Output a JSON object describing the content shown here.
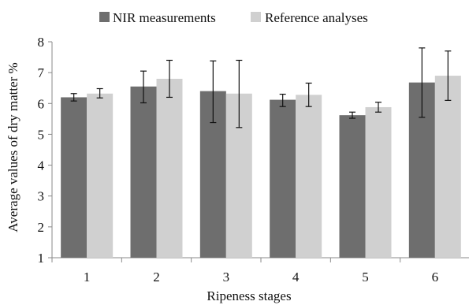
{
  "chart_data": {
    "type": "bar",
    "title": "",
    "xlabel": "Ripeness stages",
    "ylabel": "Average values of dry matter %",
    "categories": [
      "1",
      "2",
      "3",
      "4",
      "5",
      "6"
    ],
    "ylim": [
      1,
      8
    ],
    "yticks": [
      "1",
      "2",
      "3",
      "4",
      "5",
      "6",
      "7",
      "8"
    ],
    "grid": false,
    "legend_position": "top",
    "series": [
      {
        "name": "NIR measurements",
        "color": "#6e6e6e",
        "values": [
          6.2,
          6.55,
          6.4,
          6.12,
          5.62,
          6.68
        ],
        "error_low": [
          6.08,
          6.02,
          5.38,
          5.9,
          5.52,
          5.55
        ],
        "error_high": [
          6.32,
          7.05,
          7.38,
          6.3,
          5.72,
          7.8
        ]
      },
      {
        "name": "Reference analyses",
        "color": "#d0d0d0",
        "values": [
          6.32,
          6.8,
          6.32,
          6.28,
          5.88,
          6.9
        ],
        "error_low": [
          6.18,
          6.2,
          5.22,
          5.9,
          5.72,
          6.1
        ],
        "error_high": [
          6.48,
          7.4,
          7.4,
          6.66,
          6.04,
          7.7
        ]
      }
    ]
  }
}
